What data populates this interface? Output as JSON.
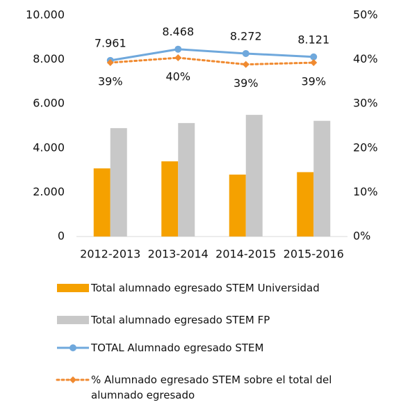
{
  "chart_data": {
    "type": "bar",
    "title": "",
    "categories": [
      "2012-2013",
      "2013-2014",
      "2014-2015",
      "2015-2016"
    ],
    "ylim": [
      0,
      10000
    ],
    "y2lim": [
      0,
      50
    ],
    "yticks": [
      "0",
      "2.000",
      "4.000",
      "6.000",
      "8.000",
      "10.000"
    ],
    "y2ticks": [
      "0%",
      "10%",
      "20%",
      "30%",
      "40%",
      "50%"
    ],
    "grid": false,
    "legend_position": "bottom",
    "series": [
      {
        "name": "Total alumnado egresado STEM Universidad",
        "kind": "bar",
        "color": "#f5a100",
        "values": [
          3080,
          3400,
          2800,
          2910
        ]
      },
      {
        "name": "Total alumnado egresado STEM FP",
        "kind": "bar",
        "color": "#c8c8c8",
        "values": [
          4900,
          5130,
          5500,
          5230
        ]
      },
      {
        "name": "TOTAL Alumnado egresado STEM",
        "kind": "line",
        "axis": "left",
        "color": "#6fa8dc",
        "values": [
          7961,
          8468,
          8272,
          8121
        ],
        "labels": [
          "7.961",
          "8.468",
          "8.272",
          "8.121"
        ]
      },
      {
        "name": "% Alumnado egresado  STEM sobre el total del alumnado egresado",
        "kind": "dotted-line",
        "axis": "right",
        "color": "#f08a30",
        "values": [
          39.3,
          40.4,
          38.9,
          39.3
        ],
        "labels": [
          "39%",
          "40%",
          "39%",
          "39%"
        ]
      }
    ]
  }
}
